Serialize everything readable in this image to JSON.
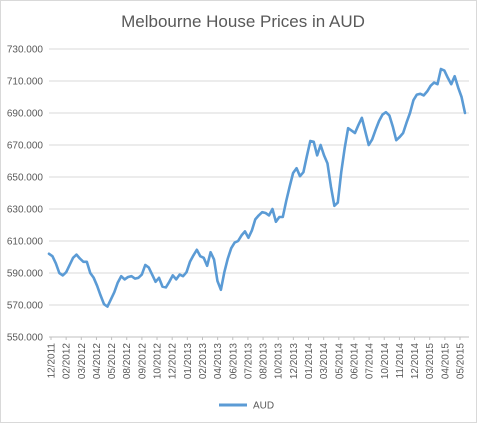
{
  "chart_data": {
    "type": "line",
    "title": "Melbourne House Prices in AUD",
    "xlabel": "",
    "ylabel": "",
    "ylim": [
      550000,
      730000
    ],
    "y_ticks": [
      550000,
      570000,
      590000,
      610000,
      630000,
      650000,
      670000,
      690000,
      710000,
      730000
    ],
    "y_tick_labels": [
      "550.000",
      "570.000",
      "590.000",
      "610.000",
      "630.000",
      "650.000",
      "670.000",
      "690.000",
      "710.000",
      "730.000"
    ],
    "x_tick_labels": [
      "12/2011",
      "02/2012",
      "03/2012",
      "04/2012",
      "05/2012",
      "08/2012",
      "09/2012",
      "10/2012",
      "12/2012",
      "01/2013",
      "02/2013",
      "04/2013",
      "06/2013",
      "07/2013",
      "08/2013",
      "10/2013",
      "12/2013",
      "01/2014",
      "03/2014",
      "05/2014",
      "06/2014",
      "07/2014",
      "10/2014",
      "11/2014",
      "12/2014",
      "03/2015",
      "04/2015",
      "05/2015"
    ],
    "grid": true,
    "legend": "bottom",
    "series": [
      {
        "name": "AUD",
        "color": "#5b9bd5",
        "values": [
          602000,
          600500,
          596000,
          590000,
          588500,
          590500,
          595000,
          599500,
          601500,
          599000,
          597000,
          597000,
          590000,
          587000,
          582000,
          576000,
          570500,
          569000,
          573500,
          578000,
          584000,
          588000,
          586000,
          587500,
          588000,
          586500,
          587000,
          589000,
          595000,
          593500,
          589000,
          584500,
          587000,
          581500,
          581000,
          584500,
          588500,
          586000,
          589000,
          588000,
          590500,
          597000,
          601000,
          604500,
          600500,
          599500,
          594500,
          603000,
          598500,
          585000,
          579500,
          590500,
          599000,
          605500,
          609000,
          610000,
          613500,
          616000,
          612000,
          616500,
          623500,
          626000,
          628000,
          627500,
          626000,
          630000,
          622000,
          625000,
          625000,
          635000,
          644000,
          652500,
          655500,
          650500,
          653000,
          663000,
          672500,
          672000,
          663500,
          670000,
          663500,
          658500,
          644000,
          632000,
          634000,
          653000,
          668000,
          680500,
          679000,
          677500,
          682500,
          687000,
          678500,
          670000,
          673500,
          679500,
          685000,
          689000,
          690500,
          688500,
          681500,
          673000,
          675000,
          677500,
          684000,
          690000,
          698000,
          701500,
          702000,
          701000,
          703500,
          707000,
          709000,
          708000,
          717500,
          716500,
          712000,
          708000,
          713000,
          706000,
          700000,
          690000
        ]
      }
    ]
  }
}
